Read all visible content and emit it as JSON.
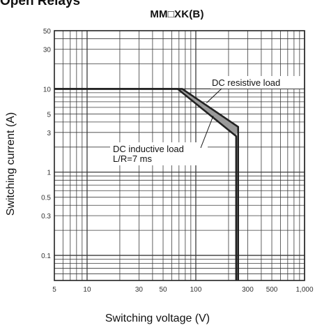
{
  "header": {
    "section_heading": "Open Relays"
  },
  "chart_data": {
    "type": "line",
    "title": "MM□XK(B)",
    "xlabel": "Switching voltage (V)",
    "ylabel": "Switching current (A)",
    "xscale": "log",
    "yscale": "log",
    "xlim": [
      5,
      1000
    ],
    "ylim": [
      0.05,
      50
    ],
    "xticks": [
      5,
      10,
      30,
      50,
      100,
      300,
      500,
      1000
    ],
    "xtick_labels": [
      "5",
      "10",
      "30",
      "50",
      "100",
      "300",
      "500",
      "1,000"
    ],
    "yticks": [
      0.1,
      0.3,
      0.5,
      1,
      3,
      5,
      10,
      30,
      50
    ],
    "ytick_labels": [
      "0.1",
      "0.3",
      "0.5",
      "1",
      "3",
      "5",
      "10",
      "30",
      "50"
    ],
    "grid": true,
    "series": [
      {
        "name": "DC resistive load",
        "x": [
          5,
          75,
          245,
          245
        ],
        "y": [
          10,
          10,
          3.5,
          0.05
        ]
      },
      {
        "name": "DC inductive load L/R=7 ms",
        "x": [
          5,
          68,
          235,
          235
        ],
        "y": [
          10,
          10,
          2.7,
          0.05
        ]
      }
    ],
    "annotations": [
      {
        "text": "DC resistive load",
        "target_series": 0
      },
      {
        "lines": [
          "DC inductive load",
          "L/R=7 ms"
        ],
        "target_series": 1
      }
    ],
    "colors": {
      "line": "#222222",
      "grid": "#3a3a3a",
      "region_fill": "#9a9a9a"
    }
  }
}
